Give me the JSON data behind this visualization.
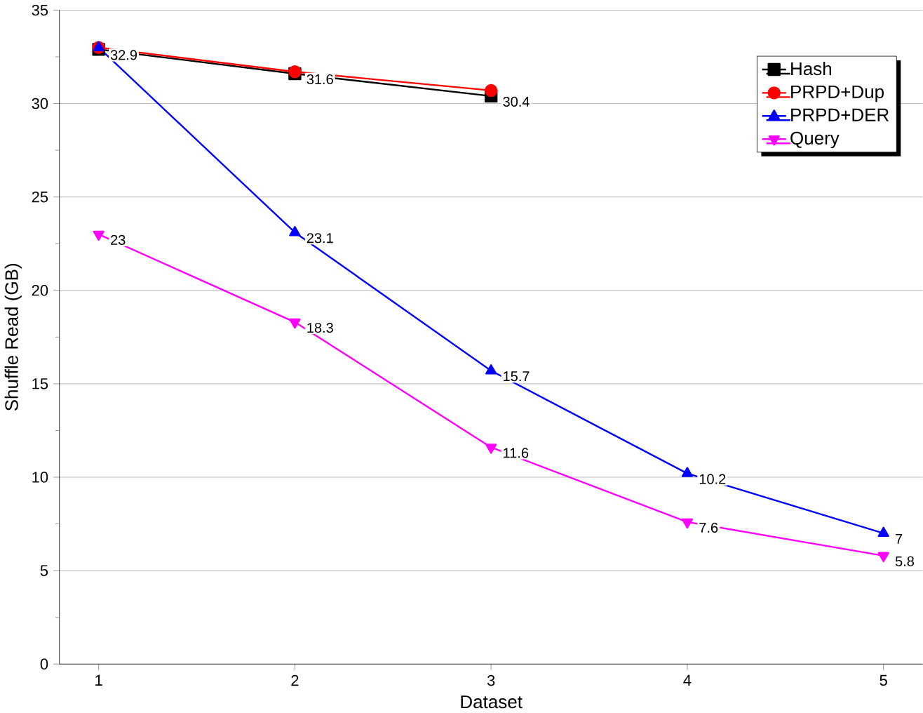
{
  "chart_data": {
    "type": "line",
    "xlabel": "Dataset",
    "ylabel": "Shuffle Read (GB)",
    "x": [
      1,
      2,
      3,
      4,
      5
    ],
    "xlim": [
      0.8,
      5.2
    ],
    "xticks": [
      1,
      2,
      3,
      4,
      5
    ],
    "ylim": [
      0,
      35
    ],
    "yticks": [
      0,
      5,
      10,
      15,
      20,
      25,
      30,
      35
    ],
    "grid": "y",
    "legend": "top right",
    "line_style": "solid",
    "series": [
      {
        "name": "Hash",
        "color": "#000000",
        "marker": "square",
        "x": [
          1,
          2,
          3
        ],
        "values": [
          32.9,
          31.6,
          30.4
        ],
        "value_labels": [
          "32.9",
          "31.6",
          "30.4"
        ]
      },
      {
        "name": "PRPD+Dup",
        "color": "#ff0000",
        "marker": "circle",
        "x": [
          1,
          2,
          3
        ],
        "values": [
          33.0,
          31.7,
          30.7
        ]
      },
      {
        "name": "PRPD+DER",
        "color": "#0000ff",
        "marker": "triangle",
        "values": [
          33.0,
          23.1,
          15.7,
          10.2,
          7
        ],
        "value_labels": [
          null,
          "23.1",
          "15.7",
          "10.2",
          "7"
        ]
      },
      {
        "name": "Query",
        "color": "#ff00ff",
        "marker": "triangle down",
        "values": [
          23,
          18.3,
          11.6,
          7.6,
          5.8
        ],
        "value_labels": [
          "23",
          "18.3",
          "11.6",
          "7.6",
          "5.8"
        ]
      }
    ]
  }
}
